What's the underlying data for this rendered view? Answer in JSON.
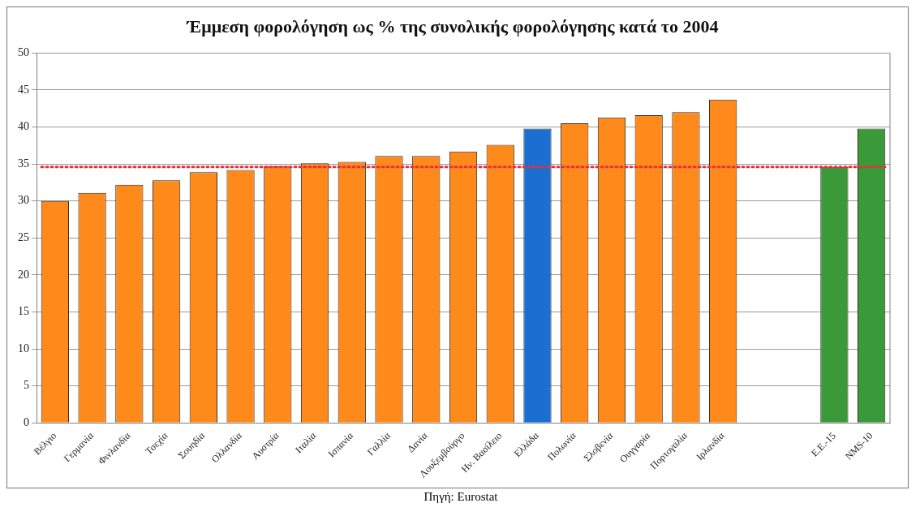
{
  "chart_data": {
    "type": "bar",
    "title": "Έμμεση φορολόγηση ως % της συνολικής φορολόγησης κατά το 2004",
    "categories": [
      "Βέλγιο",
      "Γερμανία",
      "Φινλανδία",
      "Τσεχία",
      "Σουηδία",
      "Ολλανδία",
      "Αυστρία",
      "Ιταλία",
      "Ισπανία",
      "Γαλλία",
      "Δανία",
      "Λουξεμβούργο",
      "Ην. Βασίλειο",
      "Ελλάδα",
      "Πολωνία",
      "Σλοβενία",
      "Ουγγαρία",
      "Πορτογαλία",
      "Ιρλανδία",
      null,
      null,
      "Ε.Ε.-15",
      "NMS-10"
    ],
    "values": [
      30.0,
      31.1,
      32.2,
      32.8,
      33.9,
      34.2,
      34.7,
      35.1,
      35.3,
      36.1,
      36.1,
      36.7,
      37.6,
      39.8,
      40.5,
      41.3,
      41.6,
      42.0,
      43.7,
      null,
      null,
      34.6,
      39.8
    ],
    "colors": [
      "#ff8a1c",
      "#ff8a1c",
      "#ff8a1c",
      "#ff8a1c",
      "#ff8a1c",
      "#ff8a1c",
      "#ff8a1c",
      "#ff8a1c",
      "#ff8a1c",
      "#ff8a1c",
      "#ff8a1c",
      "#ff8a1c",
      "#ff8a1c",
      "#1a6fd0",
      "#ff8a1c",
      "#ff8a1c",
      "#ff8a1c",
      "#ff8a1c",
      "#ff8a1c",
      null,
      null,
      "#3a9a3a",
      "#3a9a3a"
    ],
    "ylim": [
      0,
      50
    ],
    "yticks": [
      0,
      5,
      10,
      15,
      20,
      25,
      30,
      35,
      40,
      45,
      50
    ],
    "grid": "y",
    "ref_lines": [
      {
        "axis": "y",
        "value": 34.6,
        "color": "#e8303c",
        "line_style": "dotted"
      }
    ],
    "annotations": [
      "Πηγή: Eurostat"
    ]
  }
}
